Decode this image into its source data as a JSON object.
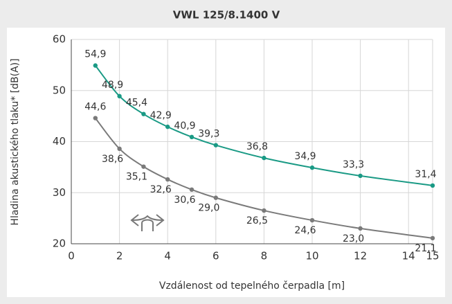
{
  "chart_data": {
    "type": "line",
    "title": "VWL 125/8.1400 V",
    "x_label": "Vzdálenost od tepelného čerpadla [m]",
    "y_label": "Hladina akustického tlaku* [dB(A)]",
    "x": [
      1,
      2,
      3,
      4,
      5,
      6,
      8,
      10,
      12,
      15
    ],
    "series": [
      {
        "color": "#1a9a85",
        "values": [
          54.9,
          48.9,
          45.4,
          42.9,
          40.9,
          39.3,
          36.8,
          34.9,
          33.3,
          31.4
        ],
        "value_labels": [
          "54,9",
          "48,9",
          "45,4",
          "42,9",
          "40,9",
          "39,3",
          "36,8",
          "34,9",
          "33,3",
          "31,4"
        ]
      },
      {
        "color": "#7a7a7a",
        "values": [
          44.6,
          38.6,
          35.1,
          32.6,
          30.6,
          29.0,
          26.5,
          24.6,
          23.0,
          21.1
        ],
        "value_labels": [
          "44,6",
          "38,6",
          "35,1",
          "32,6",
          "30,6",
          "29,0",
          "26,5",
          "24,6",
          "23,0",
          "21,1"
        ]
      }
    ],
    "xlim": [
      0,
      15
    ],
    "xticks": [
      0,
      2,
      4,
      6,
      8,
      10,
      12,
      14,
      15
    ],
    "ylim": [
      20,
      60
    ],
    "yticks": [
      20,
      30,
      40,
      50,
      60
    ],
    "grid": true
  }
}
